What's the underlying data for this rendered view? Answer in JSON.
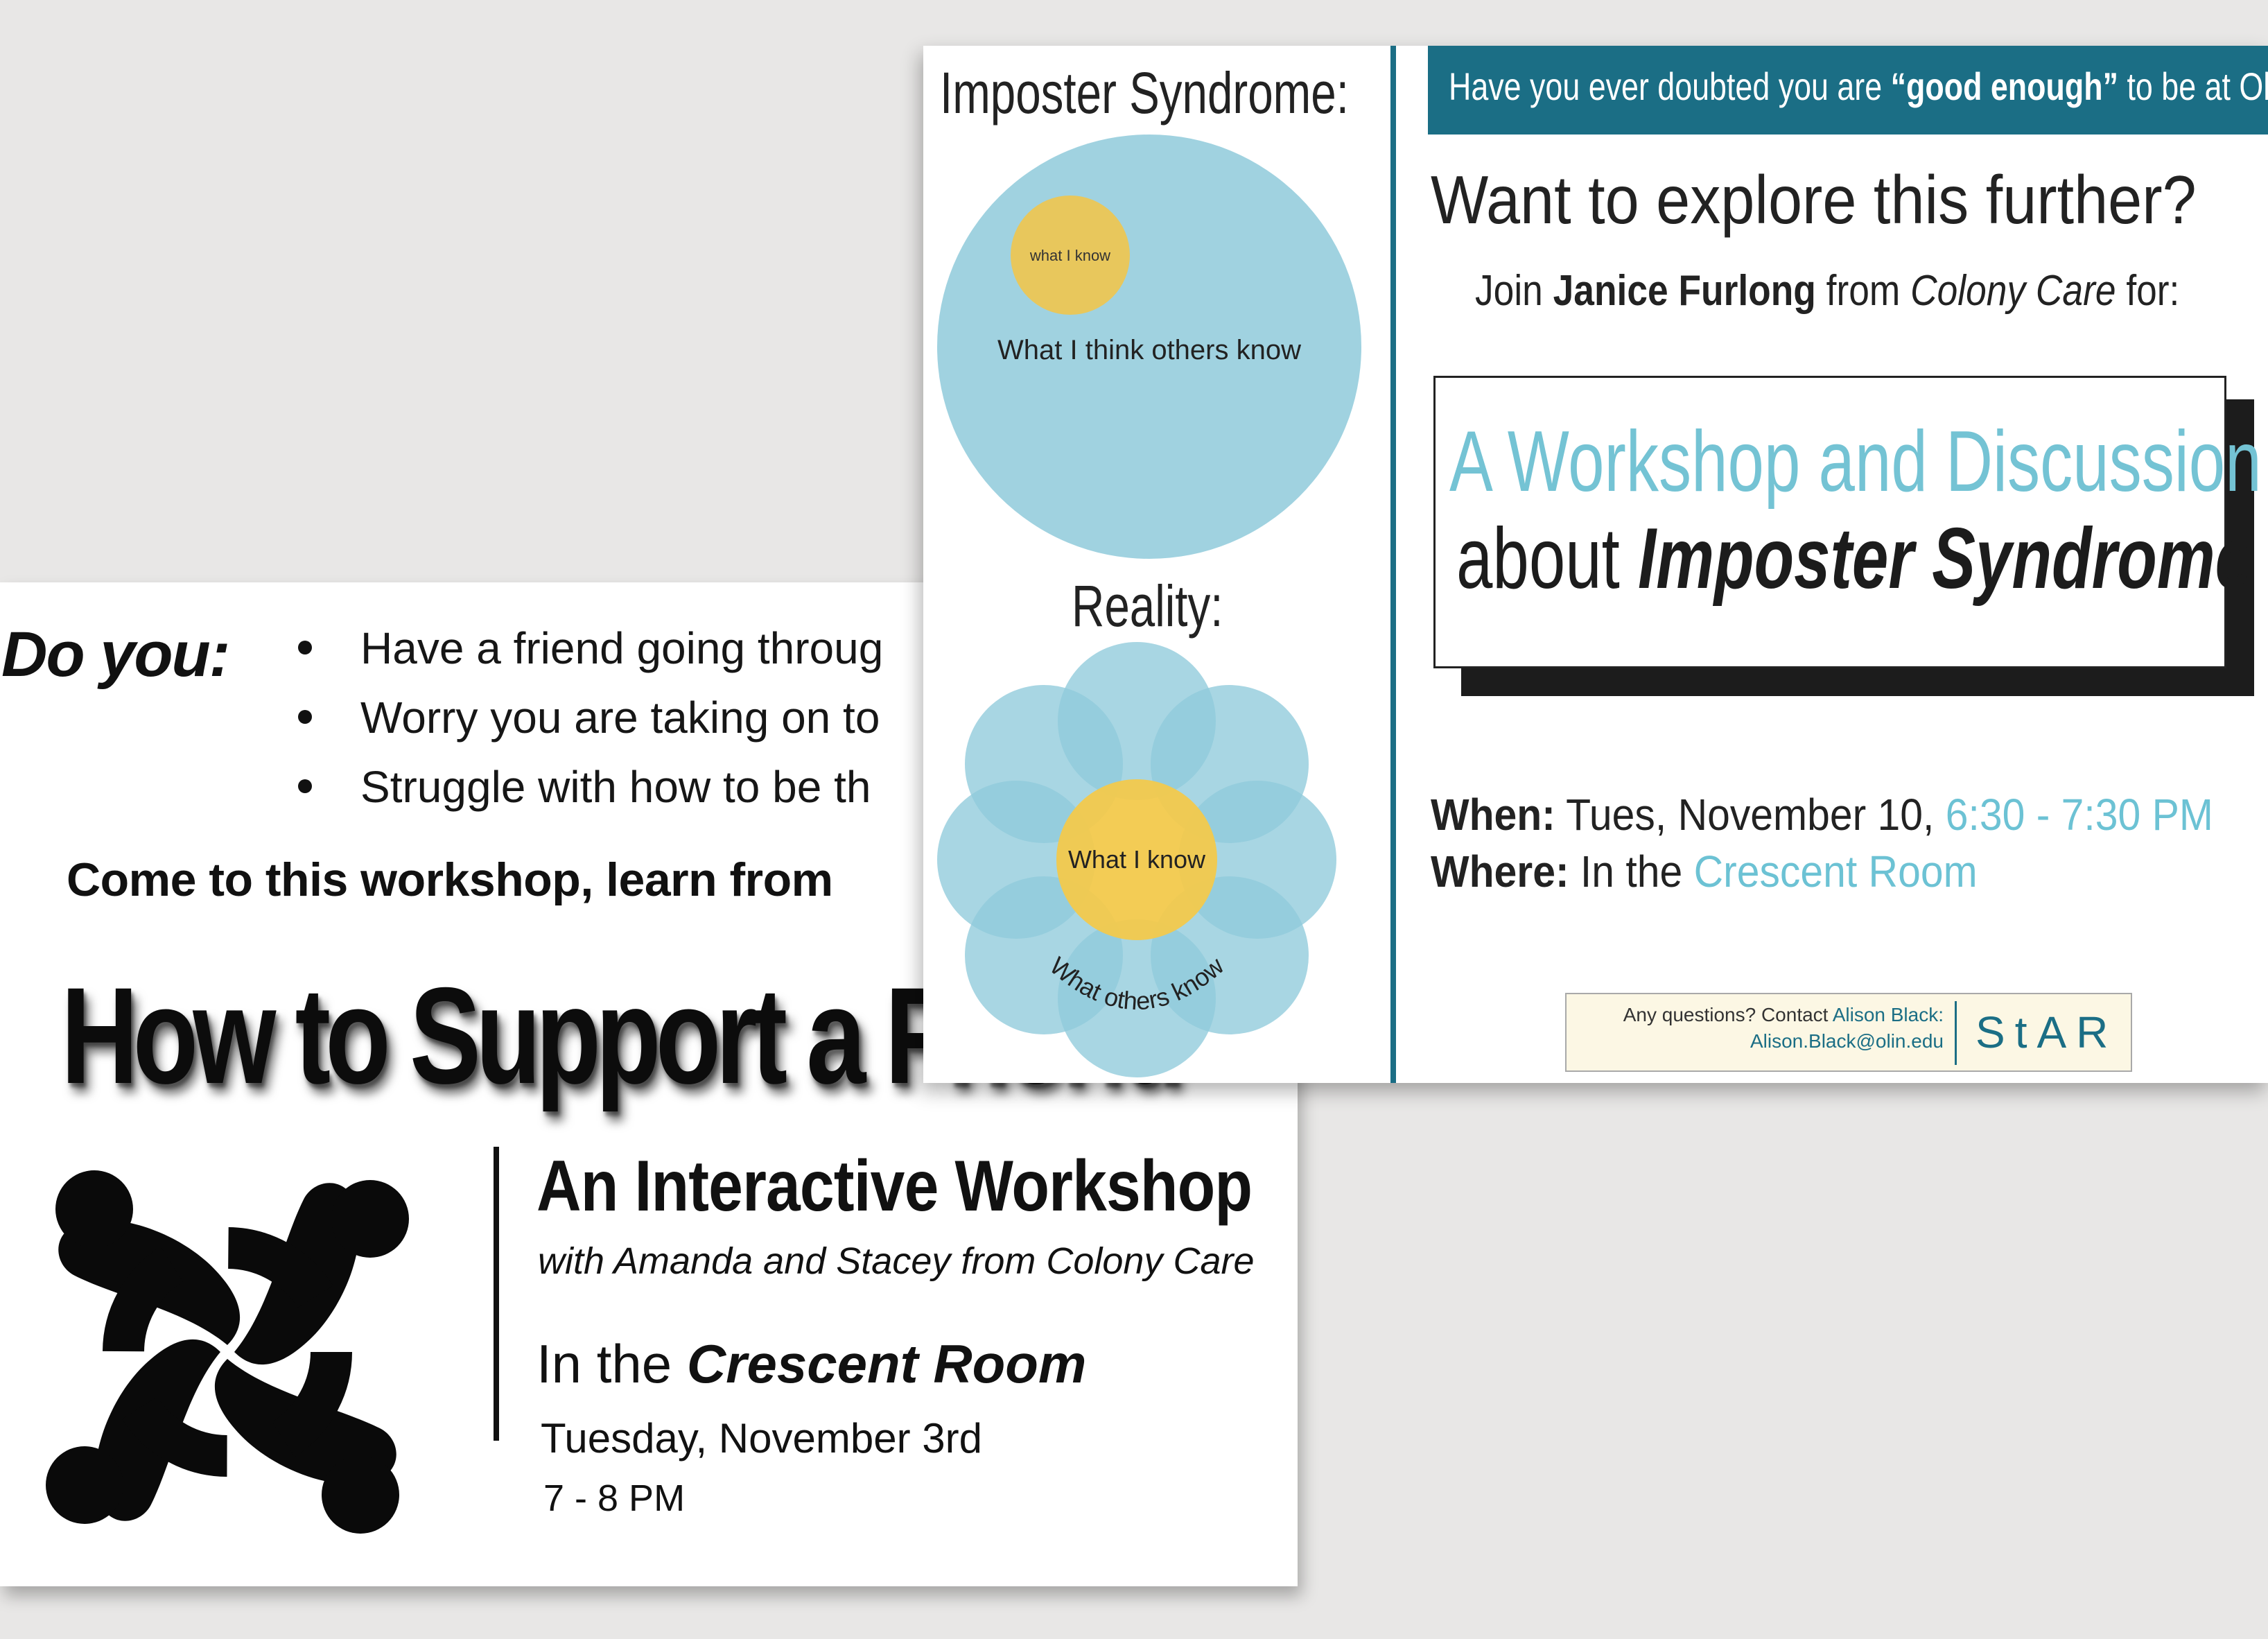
{
  "back_poster": {
    "do_you": "Do you:",
    "bullets": [
      "Have a friend going throug",
      "Worry you are taking on to",
      "Struggle with how to be th"
    ],
    "come_line": "Come to this workshop, learn from",
    "big_title": "How to Support a Friend",
    "interactive_title": "An Interactive Workshop",
    "with_line": "with Amanda and Stacey from Colony Care",
    "in_the_prefix": "In the ",
    "room": "Crescent Room",
    "date": "Tuesday, November 3rd",
    "time": "7 - 8 PM",
    "logo_icon": "four-people-circle-logo-icon"
  },
  "front_poster": {
    "imposter_heading": "Imposter Syndrome:",
    "what_i_know_small": "what I know",
    "what_i_think_others_know": "What I think others know",
    "reality_heading": "Reality:",
    "what_i_know": "What I know",
    "what_others_know": "What others know",
    "banner_prefix": "Have you ever doubted you are ",
    "banner_strong": "“good enough”",
    "banner_suffix": " to be at Olin?",
    "want_line": "Want to explore this further?",
    "join_prefix": "Join ",
    "join_name": "Janice Furlong",
    "join_mid": " from ",
    "join_org": "Colony Care",
    "join_suffix": " for:",
    "workshop_line1": "A Workshop and Discussion",
    "workshop_line2_prefix": "about ",
    "workshop_line2_bold": "Imposter Syndrome",
    "when_label": "When:",
    "when_value": " Tues, November 10, ",
    "when_time": "6:30 - 7:30 PM",
    "where_label": "Where:",
    "where_value": " In the ",
    "where_room": "Crescent Room",
    "contact_prefix": "Any questions? Contact ",
    "contact_name": "Alison Black:",
    "contact_email": "Alison.Black@olin.edu",
    "star_logo": "StAR"
  },
  "colors": {
    "teal": "#1b6e85",
    "light_blue": "#74c3d4",
    "circle_blue": "#8fcadb",
    "yellow": "#f2c94c",
    "cream": "#fcf7e4",
    "background": "#e8e7e6"
  }
}
